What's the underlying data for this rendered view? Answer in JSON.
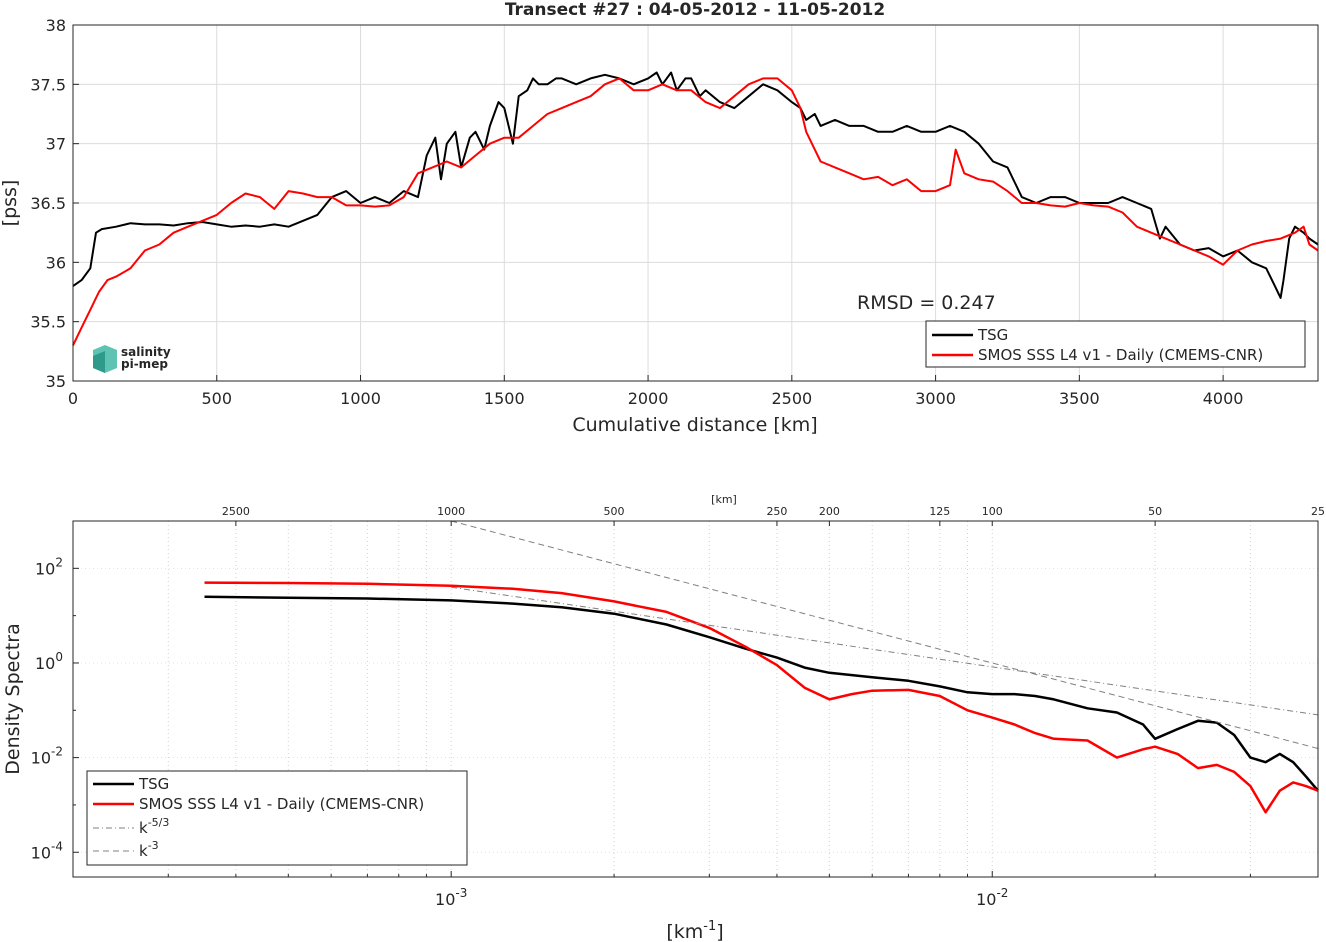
{
  "chart_data": [
    {
      "type": "line",
      "title": "Transect #27 : 04-05-2012 - 11-05-2012",
      "xlabel": "Cumulative distance [km]",
      "ylabel": "[pss]",
      "xlim": [
        0,
        4330
      ],
      "ylim": [
        35,
        38
      ],
      "xticks": [
        0,
        500,
        1000,
        1500,
        2000,
        2500,
        3000,
        3500,
        4000
      ],
      "yticks": [
        35,
        35.5,
        36,
        36.5,
        37,
        37.5,
        38
      ],
      "xtick_labels": [
        "0",
        "500",
        "1000",
        "1500",
        "2000",
        "2500",
        "3000",
        "3500",
        "4000"
      ],
      "ytick_labels": [
        "35",
        "35.5",
        "36",
        "36.5",
        "37",
        "37.5",
        "38"
      ],
      "grid": true,
      "legend_position": "bottom-right",
      "annotation": "RMSD = 0.247",
      "logo": {
        "line1": "salinity",
        "line2": "pi-mep"
      },
      "series": [
        {
          "name": "TSG",
          "color": "#000000",
          "x": [
            0,
            30,
            60,
            80,
            100,
            150,
            200,
            250,
            300,
            350,
            400,
            450,
            500,
            550,
            600,
            650,
            700,
            750,
            800,
            850,
            900,
            950,
            1000,
            1050,
            1100,
            1150,
            1200,
            1230,
            1260,
            1280,
            1300,
            1330,
            1350,
            1380,
            1400,
            1430,
            1450,
            1480,
            1500,
            1530,
            1550,
            1580,
            1600,
            1620,
            1650,
            1680,
            1700,
            1750,
            1800,
            1850,
            1900,
            1950,
            2000,
            2030,
            2050,
            2080,
            2100,
            2130,
            2150,
            2180,
            2200,
            2250,
            2300,
            2350,
            2400,
            2450,
            2500,
            2530,
            2550,
            2580,
            2600,
            2650,
            2700,
            2750,
            2800,
            2850,
            2900,
            2950,
            3000,
            3050,
            3100,
            3150,
            3200,
            3250,
            3300,
            3350,
            3400,
            3450,
            3500,
            3550,
            3600,
            3650,
            3700,
            3750,
            3780,
            3800,
            3850,
            3900,
            3950,
            4000,
            4050,
            4100,
            4150,
            4180,
            4200,
            4210,
            4230,
            4250,
            4280,
            4300,
            4330
          ],
          "y": [
            35.8,
            35.85,
            35.95,
            36.25,
            36.28,
            36.3,
            36.33,
            36.32,
            36.32,
            36.31,
            36.33,
            36.34,
            36.32,
            36.3,
            36.31,
            36.3,
            36.32,
            36.3,
            36.35,
            36.4,
            36.55,
            36.6,
            36.5,
            36.55,
            36.5,
            36.6,
            36.55,
            36.9,
            37.05,
            36.7,
            37.0,
            37.1,
            36.8,
            37.05,
            37.1,
            36.95,
            37.15,
            37.35,
            37.3,
            37.0,
            37.4,
            37.45,
            37.55,
            37.5,
            37.5,
            37.55,
            37.55,
            37.5,
            37.55,
            37.58,
            37.55,
            37.5,
            37.55,
            37.6,
            37.5,
            37.6,
            37.45,
            37.55,
            37.55,
            37.4,
            37.45,
            37.35,
            37.3,
            37.4,
            37.5,
            37.45,
            37.35,
            37.3,
            37.2,
            37.25,
            37.15,
            37.2,
            37.15,
            37.15,
            37.1,
            37.1,
            37.15,
            37.1,
            37.1,
            37.15,
            37.1,
            37.0,
            36.85,
            36.8,
            36.55,
            36.5,
            36.55,
            36.55,
            36.5,
            36.5,
            36.5,
            36.55,
            36.5,
            36.45,
            36.2,
            36.3,
            36.15,
            36.1,
            36.12,
            36.05,
            36.1,
            36.0,
            35.95,
            35.8,
            35.7,
            35.85,
            36.2,
            36.3,
            36.25,
            36.2,
            36.15
          ]
        },
        {
          "name": "SMOS SSS L4 v1 - Daily (CMEMS-CNR)",
          "color": "#ff0000",
          "x": [
            0,
            30,
            60,
            90,
            120,
            150,
            200,
            250,
            300,
            350,
            400,
            450,
            500,
            550,
            600,
            650,
            700,
            750,
            800,
            850,
            900,
            950,
            1000,
            1050,
            1100,
            1150,
            1200,
            1250,
            1300,
            1350,
            1400,
            1450,
            1500,
            1550,
            1600,
            1650,
            1700,
            1750,
            1800,
            1850,
            1900,
            1950,
            2000,
            2050,
            2100,
            2150,
            2200,
            2250,
            2300,
            2350,
            2400,
            2450,
            2500,
            2530,
            2550,
            2580,
            2600,
            2650,
            2700,
            2750,
            2800,
            2850,
            2900,
            2950,
            3000,
            3050,
            3070,
            3100,
            3150,
            3200,
            3250,
            3300,
            3350,
            3400,
            3450,
            3500,
            3550,
            3600,
            3650,
            3700,
            3750,
            3800,
            3850,
            3900,
            3950,
            4000,
            4050,
            4100,
            4150,
            4200,
            4250,
            4280,
            4300,
            4330
          ],
          "y": [
            35.3,
            35.45,
            35.6,
            35.75,
            35.85,
            35.88,
            35.95,
            36.1,
            36.15,
            36.25,
            36.3,
            36.35,
            36.4,
            36.5,
            36.58,
            36.55,
            36.45,
            36.6,
            36.58,
            36.55,
            36.55,
            36.48,
            36.48,
            36.47,
            36.48,
            36.55,
            36.75,
            36.8,
            36.85,
            36.8,
            36.9,
            37.0,
            37.05,
            37.05,
            37.15,
            37.25,
            37.3,
            37.35,
            37.4,
            37.5,
            37.55,
            37.45,
            37.45,
            37.5,
            37.45,
            37.45,
            37.35,
            37.3,
            37.4,
            37.5,
            37.55,
            37.55,
            37.45,
            37.3,
            37.1,
            36.95,
            36.85,
            36.8,
            36.75,
            36.7,
            36.72,
            36.65,
            36.7,
            36.6,
            36.6,
            36.65,
            36.95,
            36.75,
            36.7,
            36.68,
            36.6,
            36.5,
            36.5,
            36.48,
            36.47,
            36.5,
            36.48,
            36.47,
            36.42,
            36.3,
            36.25,
            36.2,
            36.15,
            36.1,
            36.05,
            35.98,
            36.1,
            36.15,
            36.18,
            36.2,
            36.25,
            36.3,
            36.15,
            36.1
          ]
        }
      ]
    },
    {
      "type": "line",
      "xlabel": "[km^-1]",
      "ylabel": "Density Spectra",
      "xscale": "log",
      "yscale": "log",
      "xlim": [
        0.0002,
        0.04
      ],
      "ylim": [
        3e-05,
        1000
      ],
      "xtick_labels": [
        {
          "base": "10",
          "exp": "-3",
          "value": 0.001
        },
        {
          "base": "10",
          "exp": "-2",
          "value": 0.01
        }
      ],
      "ytick_labels": [
        {
          "base": "10",
          "exp": "2",
          "value": 100
        },
        {
          "base": "10",
          "exp": "0",
          "value": 1
        },
        {
          "base": "10",
          "exp": "-2",
          "value": 0.01
        },
        {
          "base": "10",
          "exp": "-4",
          "value": 0.0001
        }
      ],
      "top_axis_label": "[km]",
      "top_ticks": [
        2500,
        1000,
        500,
        250,
        200,
        125,
        100,
        50,
        25
      ],
      "top_tick_labels": [
        "2500",
        "1000",
        "500",
        "250",
        "200",
        "125",
        "100",
        "50",
        "25"
      ],
      "grid": true,
      "legend_position": "bottom-left",
      "series": [
        {
          "name": "TSG",
          "color": "#000000",
          "x": [
            0.00035,
            0.0005,
            0.0007,
            0.001,
            0.0013,
            0.0016,
            0.002,
            0.0025,
            0.003,
            0.0035,
            0.004,
            0.0045,
            0.005,
            0.006,
            0.007,
            0.008,
            0.009,
            0.01,
            0.011,
            0.012,
            0.013,
            0.015,
            0.017,
            0.019,
            0.02,
            0.022,
            0.024,
            0.026,
            0.028,
            0.03,
            0.032,
            0.034,
            0.036,
            0.038,
            0.04
          ],
          "y": [
            25,
            24,
            23,
            21,
            18,
            15,
            11,
            6.5,
            3.5,
            2.0,
            1.3,
            0.8,
            0.62,
            0.5,
            0.42,
            0.32,
            0.24,
            0.22,
            0.22,
            0.2,
            0.17,
            0.11,
            0.09,
            0.05,
            0.025,
            0.04,
            0.06,
            0.055,
            0.03,
            0.01,
            0.008,
            0.012,
            0.008,
            0.004,
            0.002
          ]
        },
        {
          "name": "SMOS SSS L4 v1 - Daily (CMEMS-CNR)",
          "color": "#ff0000",
          "x": [
            0.00035,
            0.0005,
            0.0007,
            0.001,
            0.0013,
            0.0016,
            0.002,
            0.0025,
            0.003,
            0.0035,
            0.004,
            0.0045,
            0.005,
            0.0055,
            0.006,
            0.007,
            0.008,
            0.009,
            0.01,
            0.011,
            0.012,
            0.013,
            0.015,
            0.017,
            0.019,
            0.02,
            0.022,
            0.024,
            0.026,
            0.028,
            0.03,
            0.032,
            0.034,
            0.036,
            0.038,
            0.04
          ],
          "y": [
            50,
            49,
            47,
            43,
            37,
            30,
            20,
            12,
            5.5,
            2.2,
            0.9,
            0.3,
            0.17,
            0.22,
            0.26,
            0.27,
            0.2,
            0.1,
            0.07,
            0.05,
            0.033,
            0.025,
            0.023,
            0.01,
            0.015,
            0.017,
            0.012,
            0.006,
            0.007,
            0.005,
            0.0025,
            0.0007,
            0.002,
            0.003,
            0.0025,
            0.002
          ]
        },
        {
          "name": "k^-5/3",
          "color": "#808080",
          "x": [
            0.001,
            0.04
          ],
          "y": [
            40,
            0.08
          ]
        },
        {
          "name": "k^-3",
          "color": "#808080",
          "x": [
            0.001,
            0.04
          ],
          "y": [
            1000,
            0.0156
          ]
        }
      ]
    }
  ]
}
